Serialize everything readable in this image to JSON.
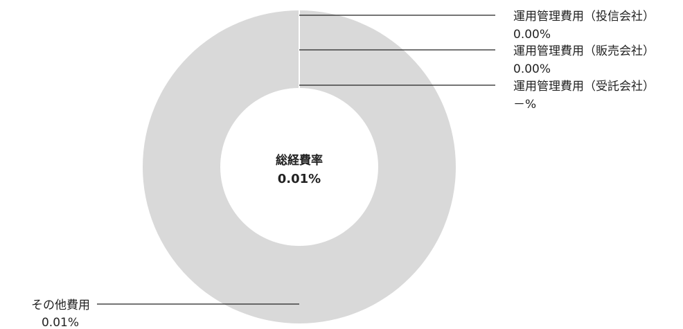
{
  "chart_data": {
    "type": "pie",
    "style": "donut",
    "center": {
      "title": "総経費率",
      "value": "0.01%"
    },
    "slices": [
      {
        "label": "運用管理費用（投信会社）",
        "display": "0.00%",
        "value": 0.0,
        "color": "#d9d9d9"
      },
      {
        "label": "運用管理費用（販売会社）",
        "display": "0.00%",
        "value": 0.0,
        "color": "#d9d9d9"
      },
      {
        "label": "運用管理費用（受託会社）",
        "display": "－%",
        "value": 0.0,
        "color": "#d9d9d9"
      },
      {
        "label": "その他費用",
        "display": "0.01%",
        "value": 0.01,
        "color": "#d9d9d9"
      }
    ],
    "colors": {
      "slice": "#d9d9d9",
      "separator": "#ffffff",
      "leader": "#222222",
      "text": "#222222"
    }
  }
}
